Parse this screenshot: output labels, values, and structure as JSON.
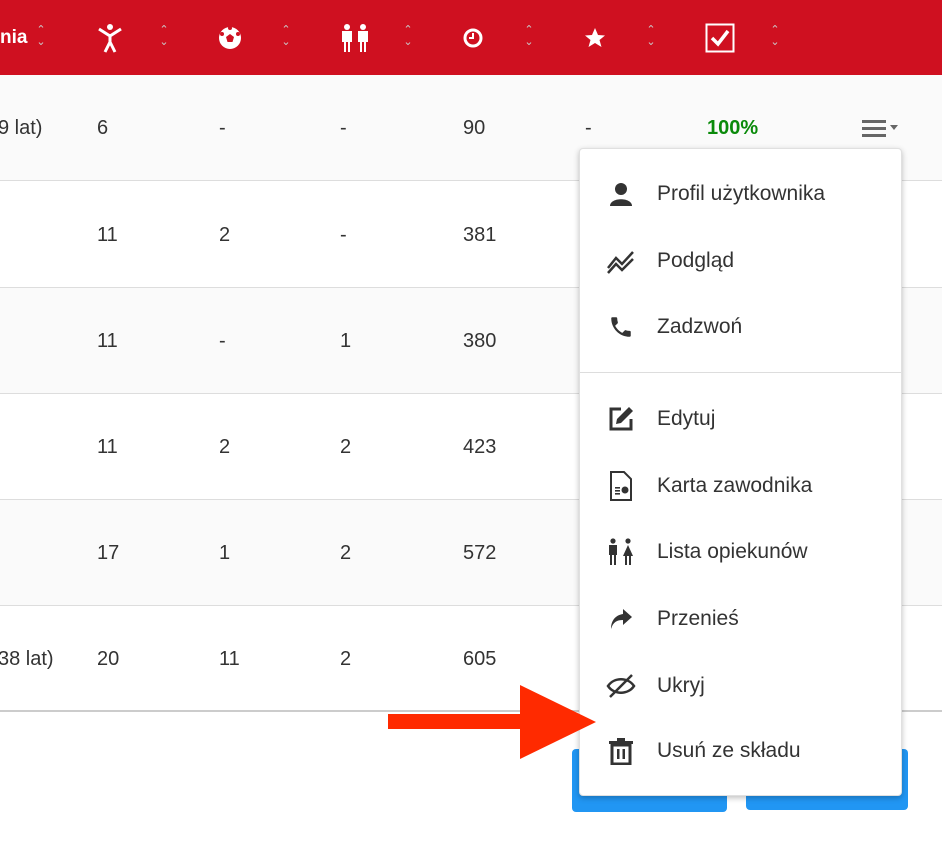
{
  "header": {
    "columns": [
      {
        "label": "nia",
        "icon": "text"
      },
      {
        "label": "",
        "icon": "person-icon"
      },
      {
        "label": "",
        "icon": "soccer-ball-icon"
      },
      {
        "label": "",
        "icon": "guardians-icon"
      },
      {
        "label": "",
        "icon": "clock-icon"
      },
      {
        "label": "",
        "icon": "star-icon"
      },
      {
        "label": "",
        "icon": "checkbox-icon"
      }
    ],
    "color": "#CF1020"
  },
  "rows": [
    {
      "name": "9 lat)",
      "c1": "6",
      "c2": "-",
      "c3": "-",
      "c4": "90",
      "c5": "-",
      "c6": "100%"
    },
    {
      "name": "",
      "c1": "11",
      "c2": "2",
      "c3": "-",
      "c4": "381"
    },
    {
      "name": "",
      "c1": "11",
      "c2": "-",
      "c3": "1",
      "c4": "380"
    },
    {
      "name": "",
      "c1": "11",
      "c2": "2",
      "c3": "2",
      "c4": "423"
    },
    {
      "name": "",
      "c1": "17",
      "c2": "1",
      "c3": "2",
      "c4": "572"
    },
    {
      "name": "38 lat)",
      "c1": "20",
      "c2": "11",
      "c3": "2",
      "c4": "605"
    }
  ],
  "menu": {
    "items": [
      {
        "label": "Profil użytkownika",
        "icon": "user-icon"
      },
      {
        "label": "Podgląd",
        "icon": "chart-line-icon"
      },
      {
        "label": "Zadzwoń",
        "icon": "phone-icon"
      },
      {
        "label": "Edytuj",
        "icon": "edit-icon"
      },
      {
        "label": "Karta zawodnika",
        "icon": "file-chart-icon"
      },
      {
        "label": "Lista opiekunów",
        "icon": "guardians-icon"
      },
      {
        "label": "Przenieś",
        "icon": "share-arrow-icon"
      },
      {
        "label": "Ukryj",
        "icon": "eye-off-icon"
      },
      {
        "label": "Usuń ze składu",
        "icon": "trash-icon"
      }
    ]
  },
  "colors": {
    "accent": "#CF1020",
    "success": "#0a8a0a",
    "button": "#2196F3",
    "annotation_arrow": "#FF2A00"
  }
}
